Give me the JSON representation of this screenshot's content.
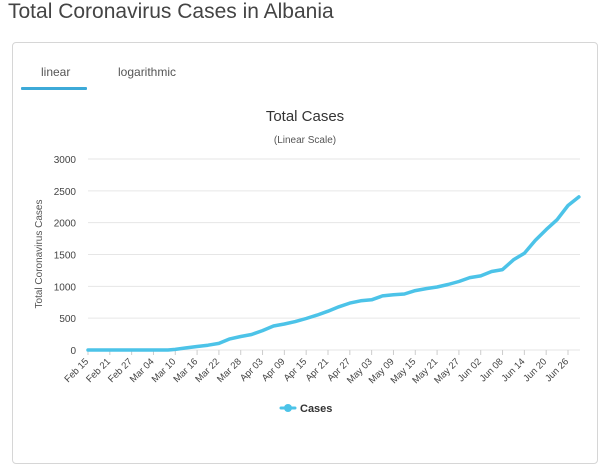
{
  "page": {
    "title": "Total Coronavirus Cases in Albania"
  },
  "tabs": [
    {
      "label": "linear",
      "active": true
    },
    {
      "label": "logarithmic",
      "active": false
    }
  ],
  "colors": {
    "series": "#4cc3e8",
    "tab_active": "#3daad8",
    "grid": "#e6e6e6"
  },
  "chart_data": {
    "type": "line",
    "title": "Total Cases",
    "subtitle": "(Linear Scale)",
    "ylabel": "Total Coronavirus Cases",
    "ylim": [
      0,
      3000
    ],
    "yticks": [
      0,
      500,
      1000,
      1500,
      2000,
      2500,
      3000
    ],
    "grid": "horizontal",
    "legend_position": "bottom-center",
    "x_tick_labels": [
      "Feb 15",
      "Feb 21",
      "Feb 27",
      "Mar 04",
      "Mar 10",
      "Mar 16",
      "Mar 22",
      "Mar 28",
      "Apr 03",
      "Apr 09",
      "Apr 15",
      "Apr 21",
      "Apr 27",
      "May 03",
      "May 09",
      "May 15",
      "May 21",
      "May 27",
      "Jun 02",
      "Jun 08",
      "Jun 14",
      "Jun 20",
      "Jun 26"
    ],
    "series": [
      {
        "name": "Cases",
        "x": [
          "Feb 15",
          "Feb 21",
          "Feb 27",
          "Mar 04",
          "Mar 08",
          "Mar 10",
          "Mar 13",
          "Mar 16",
          "Mar 19",
          "Mar 22",
          "Mar 25",
          "Mar 28",
          "Mar 31",
          "Apr 03",
          "Apr 06",
          "Apr 09",
          "Apr 12",
          "Apr 15",
          "Apr 18",
          "Apr 21",
          "Apr 24",
          "Apr 27",
          "Apr 30",
          "May 03",
          "May 06",
          "May 09",
          "May 12",
          "May 15",
          "May 18",
          "May 21",
          "May 24",
          "May 27",
          "May 30",
          "Jun 02",
          "Jun 05",
          "Jun 08",
          "Jun 11",
          "Jun 14",
          "Jun 17",
          "Jun 20",
          "Jun 23",
          "Jun 26",
          "Jun 29"
        ],
        "values": [
          0,
          0,
          0,
          0,
          0,
          10,
          33,
          55,
          76,
          104,
          174,
          212,
          243,
          304,
          377,
          409,
          446,
          494,
          548,
          609,
          678,
          736,
          773,
          789,
          850,
          868,
          880,
          933,
          964,
          989,
          1029,
          1076,
          1137,
          1164,
          1233,
          1263,
          1416,
          1521,
          1722,
          1891,
          2047,
          2269,
          2404
        ]
      }
    ]
  }
}
